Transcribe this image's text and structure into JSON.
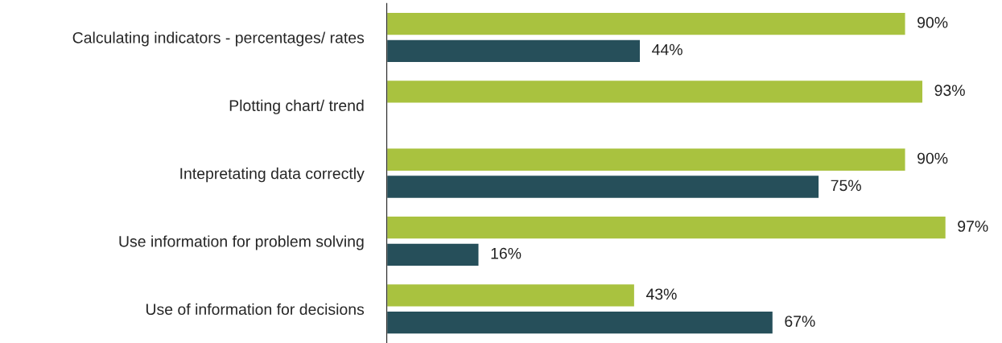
{
  "chart_data": {
    "type": "bar",
    "orientation": "horizontal",
    "categories": [
      "Calculating indicators - percentages/ rates",
      "Plotting chart/ trend",
      "Intepretating data correctly",
      "Use information for problem solving",
      "Use of information for decisions"
    ],
    "series": [
      {
        "color": "#a9c23f",
        "values": [
          90,
          93,
          90,
          97,
          43
        ],
        "value_labels": [
          "90%",
          "93%",
          "90%",
          "97%",
          "43%"
        ]
      },
      {
        "color": "#264f5a",
        "values": [
          44,
          null,
          75,
          16,
          67
        ],
        "value_labels": [
          "44%",
          null,
          "75%",
          "16%",
          "67%"
        ]
      }
    ]
  }
}
